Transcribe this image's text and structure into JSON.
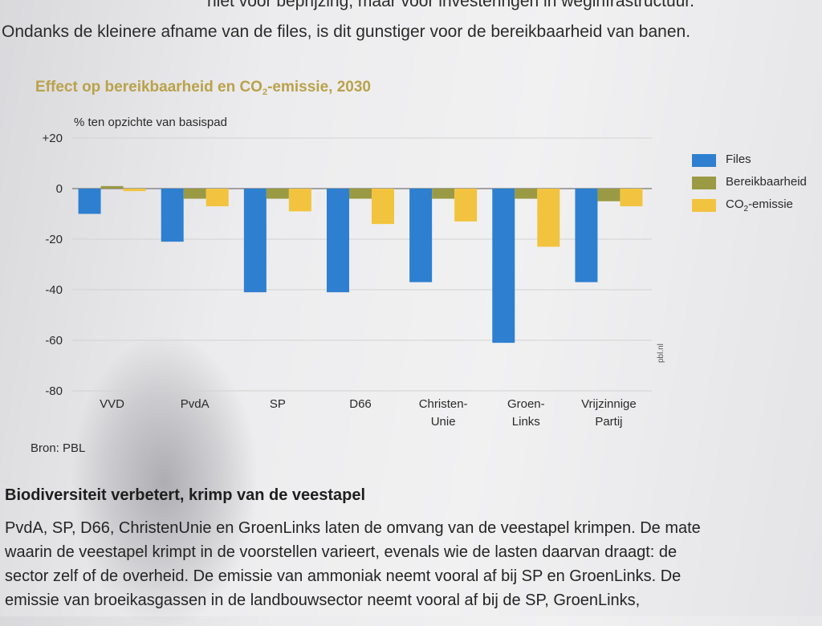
{
  "page": {
    "intro_line1": "niet voor beprijzing, maar voor investeringen in weginfrastructuur.",
    "intro_line2": "Ondanks de kleinere afname van de files, is dit gunstiger voor de bereikbaarheid van banen.",
    "section_heading": "Biodiversiteit verbetert, krimp van de veestapel",
    "body_lines": [
      "PvdA, SP, D66, ChristenUnie en GroenLinks laten de omvang van de veestapel krimpen. De mate",
      "waarin de veestapel krimpt in de voorstellen varieert, evenals wie de lasten daarvan draagt: de",
      "sector zelf of de overheid. De emissie van ammoniak neemt vooral af bij SP en GroenLinks. De",
      "emissie van broeikasgassen in de landbouwsector neemt vooral af bij de SP, GroenLinks,"
    ]
  },
  "colors": {
    "files": "#2f7fd1",
    "bereikbaarheid": "#9a9a45",
    "co2": "#f1c33e",
    "title": "#b9a24a"
  },
  "chart_data": {
    "type": "bar",
    "title_prefix": "Effect op bereikbaarheid en CO",
    "title_sub": "2",
    "title_suffix": "-emissie, 2030",
    "ylabel": "% ten opzichte van basispad",
    "yticks": [
      "+20",
      "0",
      "-20",
      "-40",
      "-60",
      "-80"
    ],
    "ylim": [
      -80,
      20
    ],
    "categories": [
      [
        "VVD"
      ],
      [
        "PvdA"
      ],
      [
        "SP"
      ],
      [
        "D66"
      ],
      [
        "Christen-",
        "Unie"
      ],
      [
        "Groen-",
        "Links"
      ],
      [
        "Vrijzinnige",
        "Partij"
      ]
    ],
    "series": [
      {
        "name": "Files",
        "key": "files",
        "values": [
          -10,
          -21,
          -41,
          -41,
          -37,
          -61,
          -37
        ]
      },
      {
        "name": "Bereikbaarheid",
        "key": "bereikbaarheid",
        "values": [
          1,
          -4,
          -4,
          -4,
          -4,
          -4,
          -5
        ]
      },
      {
        "name": "CO",
        "name_sub": "2",
        "name_suffix": "-emissie",
        "key": "co2",
        "values": [
          -1,
          -7,
          -9,
          -14,
          -13,
          -23,
          -7
        ]
      }
    ],
    "source": "Bron: PBL",
    "credit": "pbl.nl",
    "grid": true,
    "legend_position": "right"
  }
}
